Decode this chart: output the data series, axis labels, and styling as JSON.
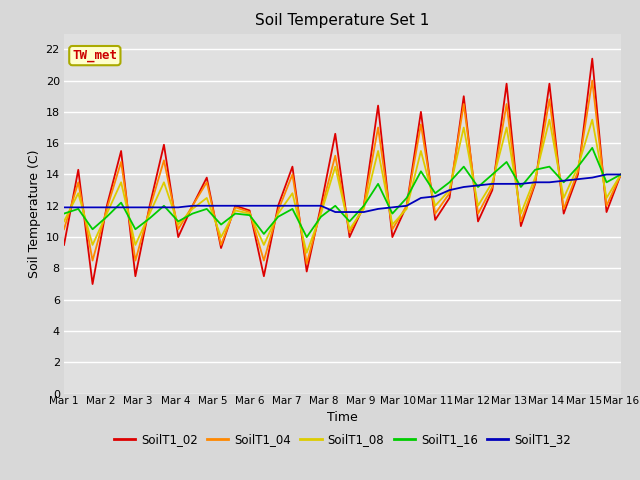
{
  "title": "Soil Temperature Set 1",
  "xlabel": "Time",
  "ylabel": "Soil Temperature (C)",
  "ylim": [
    0,
    23
  ],
  "yticks": [
    0,
    2,
    4,
    6,
    8,
    10,
    12,
    14,
    16,
    18,
    20,
    22
  ],
  "x_labels": [
    "Mar 1",
    "Mar 2",
    "Mar 3",
    "Mar 4",
    "Mar 5",
    "Mar 6",
    "Mar 7",
    "Mar 8",
    "Mar 9",
    "Mar 10",
    "Mar 11",
    "Mar 12",
    "Mar 13",
    "Mar 14",
    "Mar 15",
    "Mar 16"
  ],
  "legend_labels": [
    "SoilT1_02",
    "SoilT1_04",
    "SoilT1_08",
    "SoilT1_16",
    "SoilT1_32"
  ],
  "colors": [
    "#dd0000",
    "#ff8800",
    "#ddcc00",
    "#00cc00",
    "#0000bb"
  ],
  "annotation_text": "TW_met",
  "annotation_color": "#cc0000",
  "annotation_bg": "#ffffcc",
  "outer_bg": "#d8d8d8",
  "plot_bg": "#e0e0e0",
  "SoilT1_02": [
    9.5,
    14.3,
    7.0,
    12.0,
    15.5,
    7.5,
    12.0,
    15.9,
    10.0,
    12.0,
    13.8,
    9.3,
    12.0,
    11.7,
    7.5,
    12.0,
    14.5,
    7.8,
    12.0,
    16.6,
    10.0,
    12.0,
    18.4,
    10.0,
    12.0,
    18.0,
    11.1,
    12.5,
    19.0,
    11.0,
    13.0,
    19.8,
    10.7,
    13.4,
    19.8,
    11.5,
    14.0,
    21.4,
    11.6,
    14.0
  ],
  "SoilT1_04": [
    10.5,
    13.5,
    8.5,
    11.8,
    14.8,
    8.5,
    11.8,
    14.9,
    10.5,
    12.0,
    13.5,
    9.5,
    11.9,
    11.6,
    8.5,
    11.7,
    14.0,
    8.3,
    11.7,
    15.2,
    10.3,
    12.0,
    17.0,
    10.5,
    12.0,
    17.2,
    11.5,
    12.8,
    18.5,
    11.5,
    13.2,
    18.5,
    11.0,
    13.5,
    18.8,
    11.8,
    14.2,
    20.0,
    12.0,
    14.0
  ],
  "SoilT1_08": [
    11.0,
    12.8,
    9.5,
    11.5,
    13.5,
    9.5,
    11.5,
    13.5,
    10.8,
    11.8,
    12.5,
    10.0,
    11.7,
    11.5,
    9.5,
    11.5,
    12.8,
    9.0,
    11.5,
    14.5,
    10.5,
    11.8,
    15.5,
    10.8,
    11.8,
    15.5,
    12.0,
    13.0,
    17.0,
    12.0,
    13.5,
    17.0,
    11.5,
    13.8,
    17.5,
    12.5,
    14.5,
    17.5,
    12.5,
    14.0
  ],
  "SoilT1_16": [
    11.5,
    11.8,
    10.5,
    11.3,
    12.2,
    10.5,
    11.2,
    12.0,
    11.0,
    11.5,
    11.8,
    10.8,
    11.5,
    11.4,
    10.2,
    11.3,
    11.8,
    10.0,
    11.3,
    12.0,
    11.0,
    12.0,
    13.4,
    11.5,
    12.5,
    14.2,
    12.8,
    13.5,
    14.5,
    13.2,
    14.0,
    14.8,
    13.2,
    14.3,
    14.5,
    13.5,
    14.5,
    15.7,
    13.5,
    14.0
  ],
  "SoilT1_32": [
    11.9,
    11.9,
    11.9,
    11.9,
    11.9,
    11.9,
    11.9,
    11.9,
    11.9,
    12.0,
    12.0,
    12.0,
    12.0,
    12.0,
    12.0,
    12.0,
    12.0,
    12.0,
    12.0,
    11.6,
    11.6,
    11.6,
    11.8,
    11.9,
    12.0,
    12.5,
    12.6,
    13.0,
    13.2,
    13.3,
    13.4,
    13.4,
    13.4,
    13.5,
    13.5,
    13.6,
    13.7,
    13.8,
    14.0,
    14.0
  ]
}
